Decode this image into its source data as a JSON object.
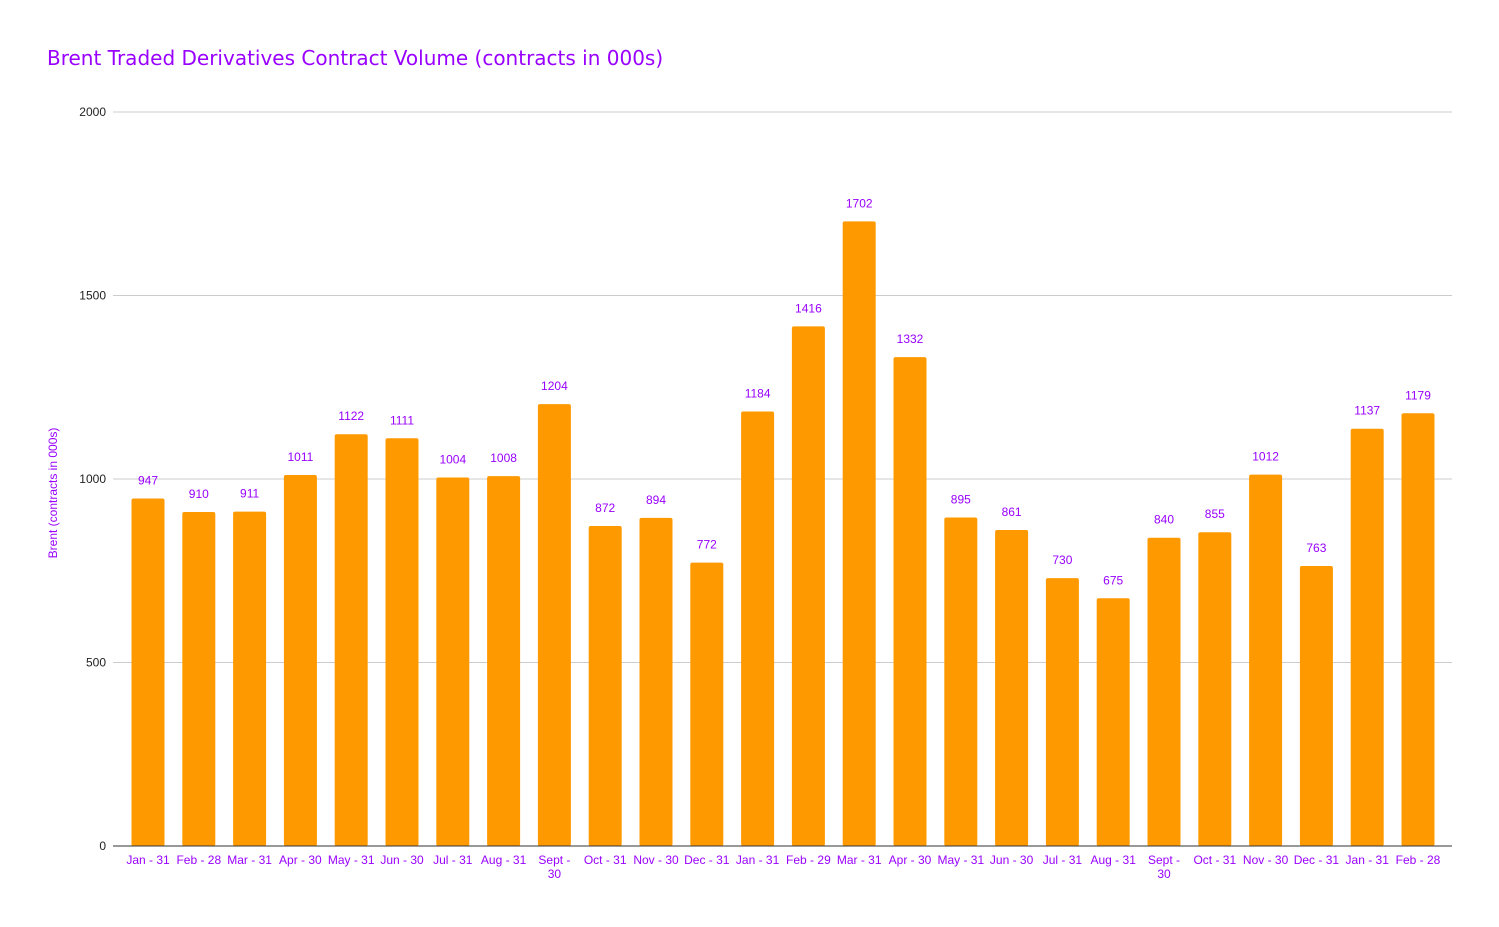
{
  "chart_data": {
    "type": "bar",
    "title": "Brent Traded Derivatives Contract Volume (contracts in 000s)",
    "xlabel": "",
    "ylabel": "Brent (contracts in 000s)",
    "ylim": [
      0,
      2000
    ],
    "yticks": [
      0,
      500,
      1000,
      1500,
      2000
    ],
    "grid": true,
    "legend": "none",
    "bar_color": "#ff9900",
    "label_color": "#9900ff",
    "categories": [
      "Jan - 31",
      "Feb - 28",
      "Mar - 31",
      "Apr - 30",
      "May - 31",
      "Jun - 30",
      "Jul - 31",
      "Aug - 31",
      "Sept - 30",
      "Oct - 31",
      "Nov - 30",
      "Dec - 31",
      "Jan - 31",
      "Feb - 29",
      "Mar - 31",
      "Apr - 30",
      "May - 31",
      "Jun - 30",
      "Jul - 31",
      "Aug - 31",
      "Sept - 30",
      "Oct - 31",
      "Nov - 30",
      "Dec - 31",
      "Jan - 31",
      "Feb - 28"
    ],
    "values": [
      947,
      910,
      911,
      1011,
      1122,
      1111,
      1004,
      1008,
      1204,
      872,
      894,
      772,
      1184,
      1416,
      1702,
      1332,
      895,
      861,
      730,
      675,
      840,
      855,
      1012,
      763,
      1137,
      1179
    ]
  }
}
